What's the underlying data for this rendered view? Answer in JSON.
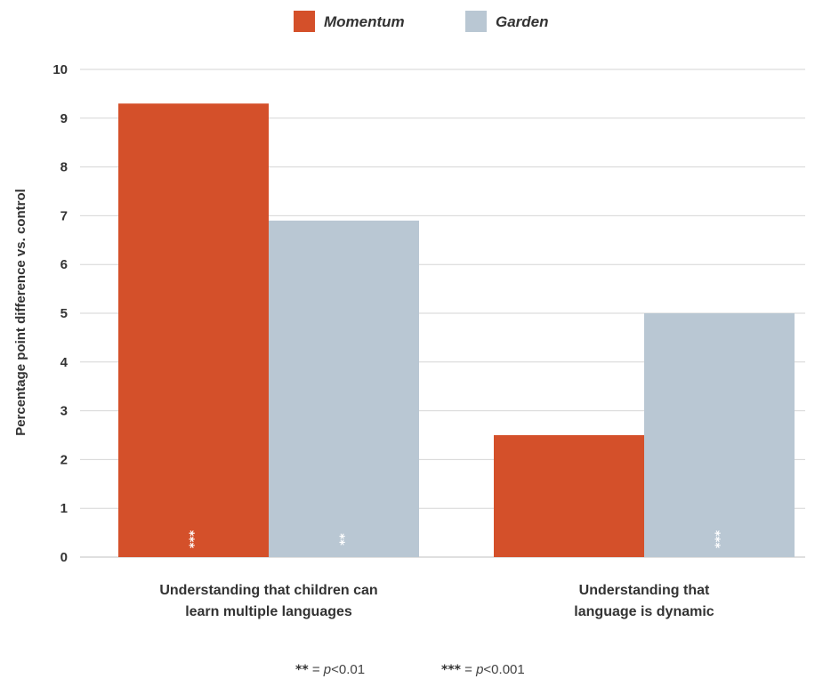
{
  "chart_data": {
    "type": "bar",
    "ylabel": "Percentage point difference vs. control",
    "ylim": [
      0,
      10
    ],
    "yticks": [
      0,
      1,
      2,
      3,
      4,
      5,
      6,
      7,
      8,
      9,
      10
    ],
    "grid": true,
    "legend_position": "top-center",
    "categories": [
      [
        "Understanding that children can",
        "learn multiple languages"
      ],
      [
        "Understanding that",
        "language is dynamic"
      ]
    ],
    "series": [
      {
        "name": "Momentum",
        "color": "#d4502a",
        "values": [
          9.3,
          2.5
        ],
        "significance": [
          "***",
          ""
        ]
      },
      {
        "name": "Garden",
        "color": "#b9c7d3",
        "values": [
          6.9,
          5.0
        ],
        "significance": [
          "**",
          "***"
        ]
      }
    ],
    "footnote": [
      {
        "stars": "**",
        "eq": " = ",
        "p": "p",
        "rest": "<0.01"
      },
      {
        "stars": "***",
        "eq": " = ",
        "p": "p",
        "rest": "<0.001"
      }
    ]
  }
}
